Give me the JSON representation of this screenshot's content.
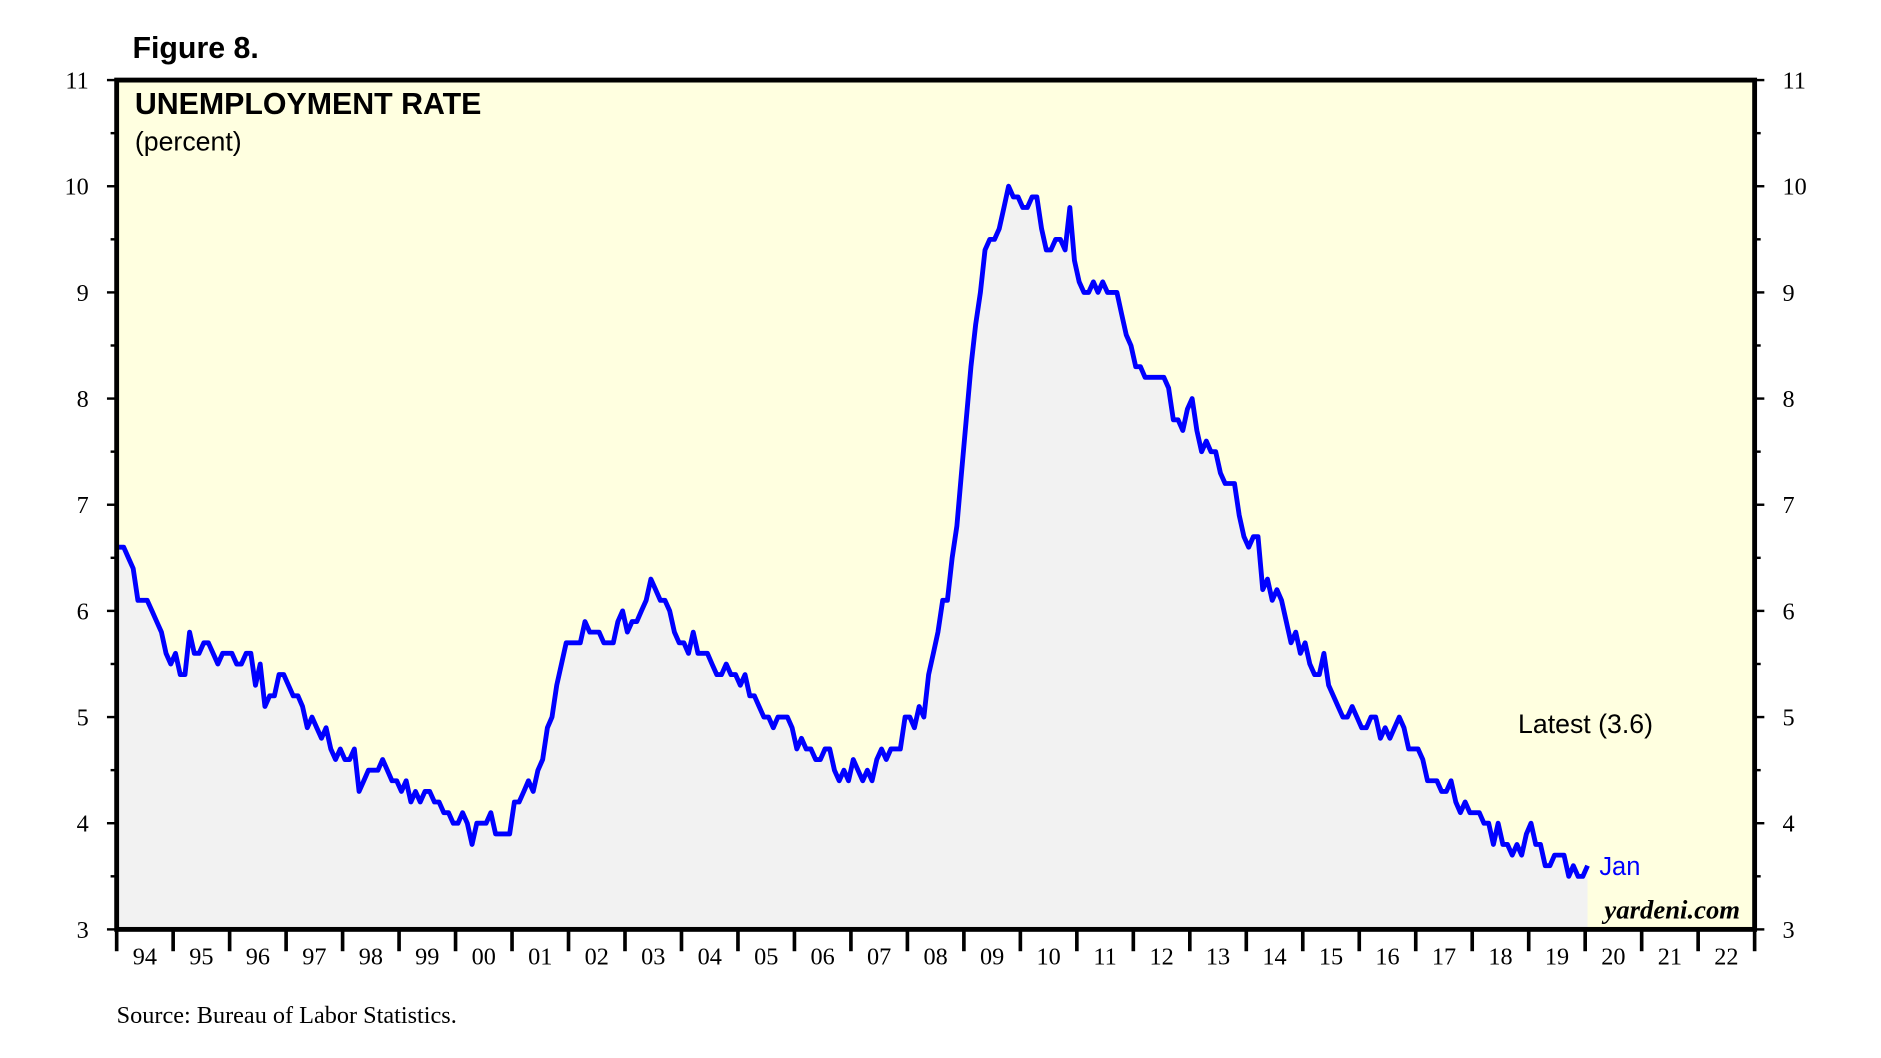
{
  "figure_label": "Figure 8.",
  "source": "Source: Bureau of Labor Statistics.",
  "watermark": "yardeni.com",
  "colors": {
    "line": "#0000ff",
    "plot_background": "#ffffe0",
    "area_fill": "#f2f2f2",
    "frame": "#000000"
  },
  "chart_data": {
    "type": "area",
    "title": "UNEMPLOYMENT RATE",
    "subtitle": "(percent)",
    "ylim": [
      3,
      11
    ],
    "yticks": [
      3,
      4,
      5,
      6,
      7,
      8,
      9,
      10,
      11
    ],
    "y_axes": "left-and-right",
    "xlim": [
      "1994-01",
      "2022-12"
    ],
    "xtick_labels": [
      "94",
      "95",
      "96",
      "97",
      "98",
      "99",
      "00",
      "01",
      "02",
      "03",
      "04",
      "05",
      "06",
      "07",
      "08",
      "09",
      "10",
      "11",
      "12",
      "13",
      "14",
      "15",
      "16",
      "17",
      "18",
      "19",
      "20",
      "21",
      "22"
    ],
    "grid": false,
    "start": "1994-01",
    "frequency": "monthly",
    "annotations": {
      "latest": "Latest (3.6)",
      "last_point": "Jan"
    },
    "series": [
      {
        "values": [
          6.6,
          6.6,
          6.5,
          6.4,
          6.1,
          6.1,
          6.1,
          6.0,
          5.9,
          5.8,
          5.6,
          5.5,
          5.6,
          5.4,
          5.4,
          5.8,
          5.6,
          5.6,
          5.7,
          5.7,
          5.6,
          5.5,
          5.6,
          5.6,
          5.6,
          5.5,
          5.5,
          5.6,
          5.6,
          5.3,
          5.5,
          5.1,
          5.2,
          5.2,
          5.4,
          5.4,
          5.3,
          5.2,
          5.2,
          5.1,
          4.9,
          5.0,
          4.9,
          4.8,
          4.9,
          4.7,
          4.6,
          4.7,
          4.6,
          4.6,
          4.7,
          4.3,
          4.4,
          4.5,
          4.5,
          4.5,
          4.6,
          4.5,
          4.4,
          4.4,
          4.3,
          4.4,
          4.2,
          4.3,
          4.2,
          4.3,
          4.3,
          4.2,
          4.2,
          4.1,
          4.1,
          4.0,
          4.0,
          4.1,
          4.0,
          3.8,
          4.0,
          4.0,
          4.0,
          4.1,
          3.9,
          3.9,
          3.9,
          3.9,
          4.2,
          4.2,
          4.3,
          4.4,
          4.3,
          4.5,
          4.6,
          4.9,
          5.0,
          5.3,
          5.5,
          5.7,
          5.7,
          5.7,
          5.7,
          5.9,
          5.8,
          5.8,
          5.8,
          5.7,
          5.7,
          5.7,
          5.9,
          6.0,
          5.8,
          5.9,
          5.9,
          6.0,
          6.1,
          6.3,
          6.2,
          6.1,
          6.1,
          6.0,
          5.8,
          5.7,
          5.7,
          5.6,
          5.8,
          5.6,
          5.6,
          5.6,
          5.5,
          5.4,
          5.4,
          5.5,
          5.4,
          5.4,
          5.3,
          5.4,
          5.2,
          5.2,
          5.1,
          5.0,
          5.0,
          4.9,
          5.0,
          5.0,
          5.0,
          4.9,
          4.7,
          4.8,
          4.7,
          4.7,
          4.6,
          4.6,
          4.7,
          4.7,
          4.5,
          4.4,
          4.5,
          4.4,
          4.6,
          4.5,
          4.4,
          4.5,
          4.4,
          4.6,
          4.7,
          4.6,
          4.7,
          4.7,
          4.7,
          5.0,
          5.0,
          4.9,
          5.1,
          5.0,
          5.4,
          5.6,
          5.8,
          6.1,
          6.1,
          6.5,
          6.8,
          7.3,
          7.8,
          8.3,
          8.7,
          9.0,
          9.4,
          9.5,
          9.5,
          9.6,
          9.8,
          10.0,
          9.9,
          9.9,
          9.8,
          9.8,
          9.9,
          9.9,
          9.6,
          9.4,
          9.4,
          9.5,
          9.5,
          9.4,
          9.8,
          9.3,
          9.1,
          9.0,
          9.0,
          9.1,
          9.0,
          9.1,
          9.0,
          9.0,
          9.0,
          8.8,
          8.6,
          8.5,
          8.3,
          8.3,
          8.2,
          8.2,
          8.2,
          8.2,
          8.2,
          8.1,
          7.8,
          7.8,
          7.7,
          7.9,
          8.0,
          7.7,
          7.5,
          7.6,
          7.5,
          7.5,
          7.3,
          7.2,
          7.2,
          7.2,
          6.9,
          6.7,
          6.6,
          6.7,
          6.7,
          6.2,
          6.3,
          6.1,
          6.2,
          6.1,
          5.9,
          5.7,
          5.8,
          5.6,
          5.7,
          5.5,
          5.4,
          5.4,
          5.6,
          5.3,
          5.2,
          5.1,
          5.0,
          5.0,
          5.1,
          5.0,
          4.9,
          4.9,
          5.0,
          5.0,
          4.8,
          4.9,
          4.8,
          4.9,
          5.0,
          4.9,
          4.7,
          4.7,
          4.7,
          4.6,
          4.4,
          4.4,
          4.4,
          4.3,
          4.3,
          4.4,
          4.2,
          4.1,
          4.2,
          4.1,
          4.1,
          4.1,
          4.0,
          4.0,
          3.8,
          4.0,
          3.8,
          3.8,
          3.7,
          3.8,
          3.7,
          3.9,
          4.0,
          3.8,
          3.8,
          3.6,
          3.6,
          3.7,
          3.7,
          3.7,
          3.5,
          3.6,
          3.5,
          3.5,
          3.6
        ]
      }
    ]
  }
}
